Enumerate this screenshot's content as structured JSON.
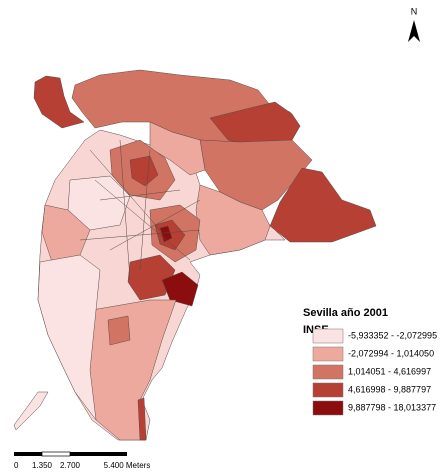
{
  "north": "N",
  "legend": {
    "title": "Sevilla año 2001",
    "subtitle": "INSE",
    "classes": [
      {
        "label": "-5,933352 - -2,072995",
        "color": "#fbe3e3"
      },
      {
        "label": "-2,072994 - 1,014050",
        "color": "#eea99e"
      },
      {
        "label": "1,014051 - 4,616997",
        "color": "#d27463"
      },
      {
        "label": "4,616998 - 9,887797",
        "color": "#b54033"
      },
      {
        "label": "9,887798 - 18,013377",
        "color": "#8b0d0d"
      }
    ]
  },
  "scale_bar": {
    "labels": [
      "0",
      "1.350",
      "2.700",
      "5.400 Meters"
    ]
  }
}
